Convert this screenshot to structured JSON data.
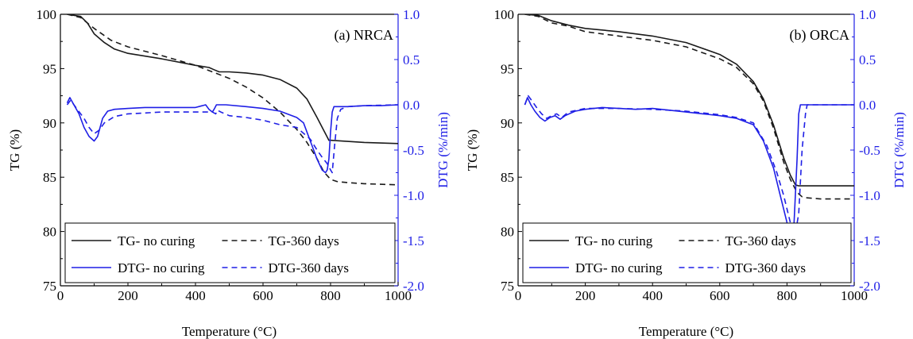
{
  "colors": {
    "tg": "#1a1a1a",
    "dtg": "#1f1fe6",
    "axis_left": "#000000",
    "axis_right": "#1f1fe6"
  },
  "chart_data": [
    {
      "type": "line",
      "panel_label": "(a) NRCA",
      "xlabel": "Temperature (°C)",
      "ylabel_left": "TG (%)",
      "ylabel_right": "DTG (%/min)",
      "xlim": [
        0,
        1000
      ],
      "ylim_left": [
        75,
        100
      ],
      "ylim_right": [
        -2.0,
        1.0
      ],
      "xticks": [
        "0",
        "200",
        "400",
        "600",
        "800",
        "1000"
      ],
      "yticks_left": [
        "75",
        "80",
        "85",
        "90",
        "95",
        "100"
      ],
      "yticks_right": [
        "-2.0",
        "-1.5",
        "-1.0",
        "-0.5",
        "0.0",
        "0.5",
        "1.0"
      ],
      "grid": false,
      "legend_position": "bottom",
      "legend": [
        {
          "label": "TG- no curing",
          "style": "solid",
          "axis": "left"
        },
        {
          "label": "TG-360 days",
          "style": "dashed",
          "axis": "left"
        },
        {
          "label": "DTG- no curing",
          "style": "solid",
          "axis": "right"
        },
        {
          "label": "DTG-360 days",
          "style": "dashed",
          "axis": "right"
        }
      ],
      "series": [
        {
          "name": "TG- no curing",
          "axis": "left",
          "style": "solid",
          "x": [
            20,
            60,
            80,
            100,
            130,
            160,
            200,
            300,
            400,
            440,
            455,
            470,
            500,
            550,
            600,
            650,
            700,
            730,
            760,
            780,
            790,
            795,
            800,
            850,
            900,
            1000
          ],
          "y": [
            100,
            99.8,
            99.2,
            98.2,
            97.4,
            96.8,
            96.4,
            95.9,
            95.3,
            95.1,
            94.9,
            94.7,
            94.7,
            94.6,
            94.4,
            94.0,
            93.2,
            92.2,
            90.5,
            89.3,
            88.7,
            88.4,
            88.4,
            88.3,
            88.2,
            88.1
          ]
        },
        {
          "name": "TG-360 days",
          "axis": "left",
          "style": "dashed",
          "x": [
            20,
            60,
            100,
            150,
            200,
            300,
            400,
            500,
            550,
            600,
            650,
            700,
            730,
            760,
            780,
            800,
            820,
            850,
            900,
            1000
          ],
          "y": [
            100,
            99.7,
            98.7,
            97.6,
            97.0,
            96.2,
            95.3,
            94.1,
            93.3,
            92.3,
            91.0,
            89.4,
            88.2,
            86.7,
            85.5,
            84.8,
            84.6,
            84.5,
            84.4,
            84.3
          ]
        },
        {
          "name": "DTG- no curing",
          "axis": "right",
          "style": "solid",
          "x": [
            20,
            28,
            40,
            55,
            70,
            85,
            100,
            110,
            125,
            140,
            160,
            200,
            250,
            300,
            350,
            400,
            430,
            440,
            450,
            455,
            462,
            470,
            490,
            550,
            600,
            650,
            700,
            720,
            740,
            760,
            775,
            785,
            790,
            795,
            800,
            805,
            810,
            850,
            900,
            950,
            1000
          ],
          "y": [
            0.02,
            0.08,
            0.0,
            -0.1,
            -0.25,
            -0.35,
            -0.4,
            -0.35,
            -0.15,
            -0.07,
            -0.05,
            -0.04,
            -0.03,
            -0.03,
            -0.03,
            -0.03,
            0.0,
            -0.05,
            -0.08,
            -0.05,
            0.0,
            0.0,
            0.0,
            -0.02,
            -0.04,
            -0.07,
            -0.14,
            -0.2,
            -0.4,
            -0.6,
            -0.72,
            -0.75,
            -0.72,
            -0.6,
            -0.3,
            -0.08,
            -0.02,
            -0.02,
            -0.01,
            -0.01,
            0.0
          ]
        },
        {
          "name": "DTG-360 days",
          "axis": "right",
          "style": "dashed",
          "x": [
            20,
            30,
            50,
            70,
            85,
            100,
            115,
            130,
            160,
            200,
            250,
            300,
            350,
            400,
            450,
            460,
            465,
            475,
            500,
            550,
            600,
            650,
            700,
            740,
            760,
            775,
            790,
            800,
            805,
            812,
            820,
            830,
            850,
            900,
            1000
          ],
          "y": [
            0.0,
            0.05,
            -0.05,
            -0.15,
            -0.25,
            -0.32,
            -0.28,
            -0.2,
            -0.13,
            -0.1,
            -0.09,
            -0.08,
            -0.08,
            -0.08,
            -0.08,
            -0.1,
            -0.06,
            -0.08,
            -0.12,
            -0.14,
            -0.17,
            -0.22,
            -0.25,
            -0.38,
            -0.5,
            -0.58,
            -0.65,
            -0.72,
            -0.75,
            -0.45,
            -0.15,
            -0.05,
            -0.02,
            -0.01,
            0.0
          ]
        }
      ]
    },
    {
      "type": "line",
      "panel_label": "(b) ORCA",
      "xlabel": "Temperature (°C)",
      "ylabel_left": "TG (%)",
      "ylabel_right": "DTG (%/min)",
      "xlim": [
        0,
        1000
      ],
      "ylim_left": [
        75,
        100
      ],
      "ylim_right": [
        -2.0,
        1.0
      ],
      "xticks": [
        "0",
        "200",
        "400",
        "600",
        "800",
        "1000"
      ],
      "yticks_left": [
        "75",
        "80",
        "85",
        "90",
        "95",
        "100"
      ],
      "yticks_right": [
        "-2.0",
        "-1.5",
        "-1.0",
        "-0.5",
        "0.0",
        "0.5",
        "1.0"
      ],
      "grid": false,
      "legend_position": "bottom",
      "legend": [
        {
          "label": "TG- no curing",
          "style": "solid",
          "axis": "left"
        },
        {
          "label": "TG-360 days",
          "style": "dashed",
          "axis": "left"
        },
        {
          "label": "DTG- no curing",
          "style": "solid",
          "axis": "right"
        },
        {
          "label": "DTG-360 days",
          "style": "dashed",
          "axis": "right"
        }
      ],
      "series": [
        {
          "name": "TG- no curing",
          "axis": "left",
          "style": "solid",
          "x": [
            20,
            60,
            100,
            150,
            200,
            300,
            400,
            500,
            600,
            650,
            700,
            730,
            760,
            790,
            810,
            825,
            835,
            845,
            850,
            900,
            1000
          ],
          "y": [
            100,
            99.9,
            99.4,
            99.0,
            98.7,
            98.4,
            98.0,
            97.4,
            96.3,
            95.4,
            93.8,
            92.2,
            89.8,
            86.8,
            85.2,
            84.3,
            84.2,
            84.2,
            84.2,
            84.2,
            84.2
          ]
        },
        {
          "name": "TG-360 days",
          "axis": "left",
          "style": "dashed",
          "x": [
            20,
            60,
            100,
            150,
            200,
            300,
            400,
            500,
            600,
            650,
            700,
            730,
            760,
            790,
            810,
            830,
            845,
            860,
            900,
            1000
          ],
          "y": [
            100,
            99.8,
            99.2,
            98.9,
            98.4,
            98.0,
            97.6,
            97.0,
            95.9,
            95.1,
            93.6,
            92.0,
            89.5,
            86.4,
            84.8,
            83.6,
            83.2,
            83.1,
            83.0,
            83.0
          ]
        },
        {
          "name": "DTG- no curing",
          "axis": "right",
          "style": "solid",
          "x": [
            20,
            28,
            38,
            50,
            65,
            80,
            95,
            110,
            125,
            140,
            170,
            200,
            250,
            300,
            350,
            400,
            450,
            500,
            550,
            600,
            650,
            700,
            730,
            760,
            780,
            800,
            810,
            815,
            820,
            830,
            835,
            840,
            860,
            900,
            1000
          ],
          "y": [
            0.0,
            0.08,
            0.0,
            -0.07,
            -0.14,
            -0.18,
            -0.14,
            -0.12,
            -0.16,
            -0.12,
            -0.07,
            -0.05,
            -0.03,
            -0.04,
            -0.05,
            -0.04,
            -0.06,
            -0.08,
            -0.1,
            -0.12,
            -0.15,
            -0.22,
            -0.4,
            -0.7,
            -1.0,
            -1.3,
            -1.43,
            -1.45,
            -1.38,
            -0.6,
            -0.1,
            0.0,
            0.0,
            0.0,
            0.0
          ]
        },
        {
          "name": "DTG-360 days",
          "axis": "right",
          "style": "dashed",
          "x": [
            20,
            30,
            40,
            55,
            70,
            85,
            100,
            115,
            130,
            150,
            200,
            300,
            400,
            500,
            600,
            650,
            700,
            740,
            770,
            790,
            810,
            820,
            825,
            835,
            845,
            855,
            860,
            900,
            1000
          ],
          "y": [
            0.0,
            0.1,
            0.05,
            -0.03,
            -0.1,
            -0.15,
            -0.12,
            -0.1,
            -0.14,
            -0.08,
            -0.04,
            -0.04,
            -0.05,
            -0.07,
            -0.11,
            -0.14,
            -0.2,
            -0.45,
            -0.75,
            -1.0,
            -1.3,
            -1.4,
            -1.42,
            -1.2,
            -0.5,
            -0.1,
            0.0,
            0.0,
            0.0
          ]
        }
      ]
    }
  ]
}
